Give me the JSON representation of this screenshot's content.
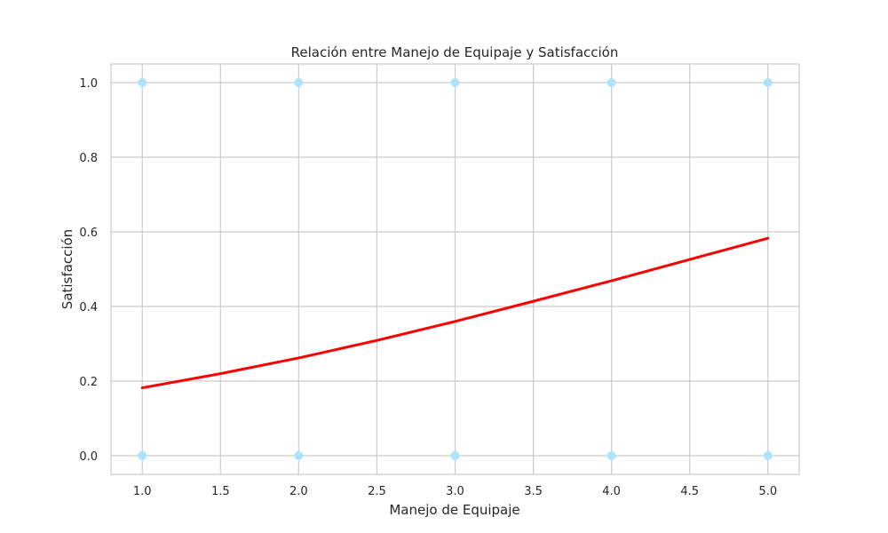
{
  "chart_data": {
    "type": "scatter",
    "title": "Relación entre Manejo de Equipaje y Satisfacción",
    "xlabel": "Manejo de Equipaje",
    "ylabel": "Satisfacción",
    "xlim": [
      0.8,
      5.2
    ],
    "ylim": [
      -0.05,
      1.05
    ],
    "xticks": [
      "1.0",
      "1.5",
      "2.0",
      "2.5",
      "3.0",
      "3.5",
      "4.0",
      "4.5",
      "5.0"
    ],
    "yticks": [
      "0.0",
      "0.2",
      "0.4",
      "0.6",
      "0.8",
      "1.0"
    ],
    "grid": true,
    "legend": "none",
    "series": [
      {
        "type": "scatter",
        "color": "#aee4fb",
        "points": [
          {
            "x": 1,
            "y": 1
          },
          {
            "x": 2,
            "y": 1
          },
          {
            "x": 3,
            "y": 1
          },
          {
            "x": 4,
            "y": 1
          },
          {
            "x": 5,
            "y": 1
          },
          {
            "x": 1,
            "y": 0
          },
          {
            "x": 2,
            "y": 0
          },
          {
            "x": 3,
            "y": 0
          },
          {
            "x": 4,
            "y": 0
          },
          {
            "x": 5,
            "y": 0
          }
        ]
      },
      {
        "type": "line",
        "color": "#ff0000",
        "x": [
          1.0,
          1.5,
          2.0,
          2.5,
          3.0,
          3.5,
          4.0,
          4.5,
          5.0
        ],
        "y": [
          0.182,
          0.22,
          0.262,
          0.309,
          0.36,
          0.414,
          0.469,
          0.526,
          0.583
        ]
      }
    ]
  }
}
